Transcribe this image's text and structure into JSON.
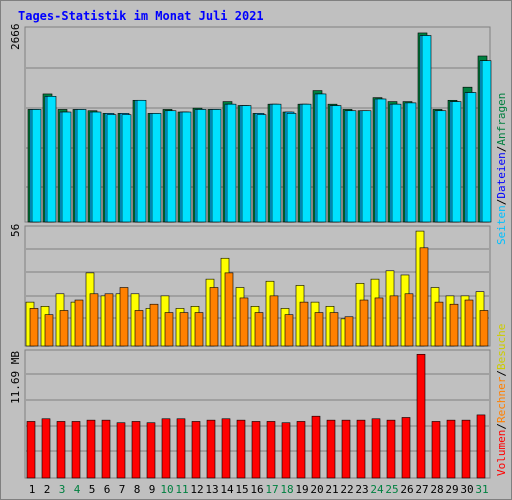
{
  "title": "Tages-Statistik im Monat Juli 2021",
  "colors": {
    "title": "#0000ff",
    "background": "#c0c0c0",
    "frame": "#e6e6e6",
    "grid": "#808080",
    "anfragen": "#008040",
    "dateien": "#00c0ff",
    "seiten": "#00e0ff",
    "besuche": "#ffff00",
    "rechner": "#ff8000",
    "volumen": "#ff0000",
    "weekend_day": "#008040",
    "weekday": "#000000",
    "separator": "#000000"
  },
  "legend": {
    "anfragen": "Anfragen",
    "dateien": "Dateien",
    "seiten": "Seiten",
    "besuche": "Besuche",
    "rechner": "Rechner",
    "volumen": "Volumen",
    "sep": "/"
  },
  "chart_data": [
    {
      "type": "bar",
      "panel": "top",
      "ylabel": "2666",
      "ylim": [
        0,
        2666
      ],
      "categories": [
        "1",
        "2",
        "3",
        "4",
        "5",
        "6",
        "7",
        "8",
        "9",
        "10",
        "11",
        "12",
        "13",
        "14",
        "15",
        "16",
        "17",
        "18",
        "19",
        "20",
        "21",
        "22",
        "23",
        "24",
        "25",
        "26",
        "27",
        "28",
        "29",
        "30",
        "31"
      ],
      "weekend_days": [
        "3",
        "4",
        "10",
        "11",
        "17",
        "18",
        "24",
        "25",
        "31"
      ],
      "series": [
        {
          "name": "Anfragen",
          "values": [
            1563,
            1778,
            1563,
            1563,
            1545,
            1508,
            1508,
            1690,
            1508,
            1563,
            1527,
            1581,
            1563,
            1672,
            1617,
            1508,
            1636,
            1527,
            1636,
            1825,
            1636,
            1563,
            1545,
            1727,
            1672,
            1672,
            2625,
            1563,
            1690,
            1872,
            2305
          ]
        },
        {
          "name": "Dateien",
          "values": [
            1563,
            1745,
            1527,
            1563,
            1527,
            1508,
            1508,
            1690,
            1508,
            1545,
            1527,
            1563,
            1563,
            1636,
            1617,
            1508,
            1636,
            1527,
            1636,
            1778,
            1617,
            1545,
            1545,
            1708,
            1636,
            1654,
            2590,
            1545,
            1672,
            1798,
            2240
          ]
        },
        {
          "name": "Seiten",
          "values": [
            1563,
            1745,
            1527,
            1563,
            1527,
            1490,
            1490,
            1690,
            1508,
            1545,
            1527,
            1563,
            1563,
            1636,
            1617,
            1490,
            1636,
            1508,
            1636,
            1778,
            1617,
            1545,
            1545,
            1708,
            1636,
            1654,
            2590,
            1545,
            1672,
            1798,
            2240
          ]
        }
      ]
    },
    {
      "type": "bar",
      "panel": "middle",
      "ylabel": "56",
      "ylim": [
        0,
        56
      ],
      "categories": [
        "1",
        "2",
        "3",
        "4",
        "5",
        "6",
        "7",
        "8",
        "9",
        "10",
        "11",
        "12",
        "13",
        "14",
        "15",
        "16",
        "17",
        "18",
        "19",
        "20",
        "21",
        "22",
        "23",
        "24",
        "25",
        "26",
        "27",
        "28",
        "29",
        "30",
        "31"
      ],
      "series": [
        {
          "name": "Besuche",
          "values": [
            21,
            19,
            25,
            21,
            35,
            24,
            25,
            25,
            18,
            24,
            18,
            19,
            32,
            42,
            28,
            19,
            31,
            18,
            29,
            21,
            19,
            13,
            30,
            32,
            36,
            34,
            55,
            28,
            24,
            24,
            26
          ]
        },
        {
          "name": "Rechner",
          "values": [
            18,
            15,
            17,
            22,
            25,
            25,
            28,
            17,
            20,
            16,
            16,
            16,
            28,
            35,
            23,
            16,
            24,
            15,
            21,
            16,
            16,
            14,
            22,
            23,
            24,
            25,
            47,
            21,
            20,
            22,
            17
          ]
        }
      ]
    },
    {
      "type": "bar",
      "panel": "bottom",
      "ylabel": "11.69 MB",
      "ylim": [
        0,
        11.69
      ],
      "categories": [
        "1",
        "2",
        "3",
        "4",
        "5",
        "6",
        "7",
        "8",
        "9",
        "10",
        "11",
        "12",
        "13",
        "14",
        "15",
        "16",
        "17",
        "18",
        "19",
        "20",
        "21",
        "22",
        "23",
        "24",
        "25",
        "26",
        "27",
        "28",
        "29",
        "30",
        "31"
      ],
      "series": [
        {
          "name": "Volumen",
          "values": [
            5.29,
            5.54,
            5.29,
            5.29,
            5.41,
            5.41,
            5.17,
            5.29,
            5.17,
            5.54,
            5.54,
            5.29,
            5.41,
            5.54,
            5.41,
            5.29,
            5.29,
            5.17,
            5.29,
            5.78,
            5.41,
            5.41,
            5.41,
            5.54,
            5.41,
            5.66,
            11.57,
            5.29,
            5.41,
            5.41,
            5.9
          ]
        }
      ]
    }
  ]
}
